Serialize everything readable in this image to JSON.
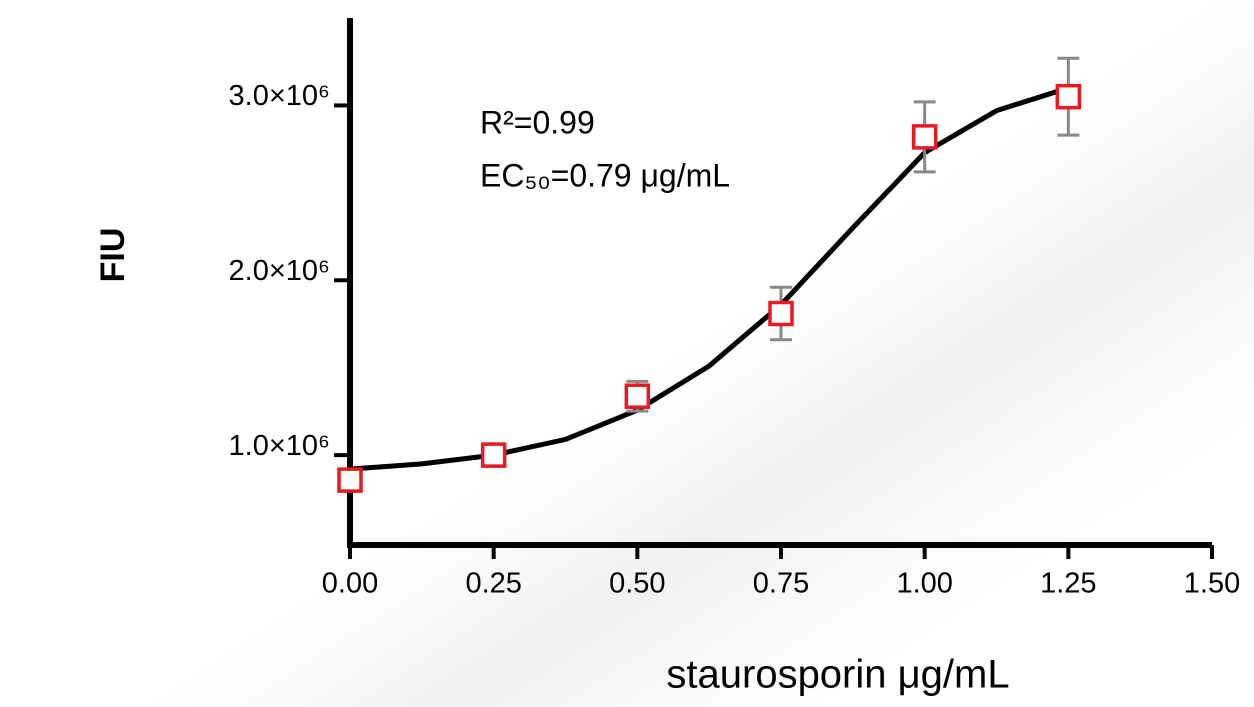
{
  "chart_data": {
    "type": "scatter",
    "x_label": "staurosporin μg/mL",
    "y_label": "FIU",
    "annotations": [
      "R²=0.99",
      "EC₅₀=0.79 μg/mL"
    ],
    "series": [
      {
        "color": "#e8191f",
        "x": [
          0,
          0.25,
          0.5,
          0.75,
          1.0,
          1.25
        ],
        "values": [
          857000,
          1000000,
          1337000,
          1810000,
          2820000,
          3050000
        ],
        "errors": [
          20000,
          20000,
          85000,
          150000,
          200000,
          220000
        ],
        "error_color": "#888888"
      },
      {
        "type": "line",
        "color": "#000000",
        "x": [
          0,
          0.125,
          0.25,
          0.375,
          0.5,
          0.625,
          0.75,
          0.875,
          1.0,
          1.125,
          1.25
        ],
        "values": [
          920000,
          950000,
          1000000,
          1090000,
          1257000,
          1510000,
          1860000,
          2300000,
          2730000,
          2970000,
          3100000
        ]
      }
    ],
    "xlim": [
      0,
      1.5
    ],
    "xticks": [
      {
        "value": 0,
        "label": "0.00"
      },
      {
        "value": 0.25,
        "label": "0.25"
      },
      {
        "value": 0.5,
        "label": "0.50"
      },
      {
        "value": 0.75,
        "label": "0.75"
      },
      {
        "value": 1.0,
        "label": "1.00"
      },
      {
        "value": 1.25,
        "label": "1.25"
      },
      {
        "value": 1.5,
        "label": "1.50"
      }
    ],
    "ylim": [
      486000,
      3500000
    ],
    "yticks": [
      {
        "value": 1000000,
        "label": "1.0×10⁶"
      },
      {
        "value": 2000000,
        "label": "2.0×10⁶"
      },
      {
        "value": 3000000,
        "label": "3.0×10⁶"
      }
    ]
  }
}
